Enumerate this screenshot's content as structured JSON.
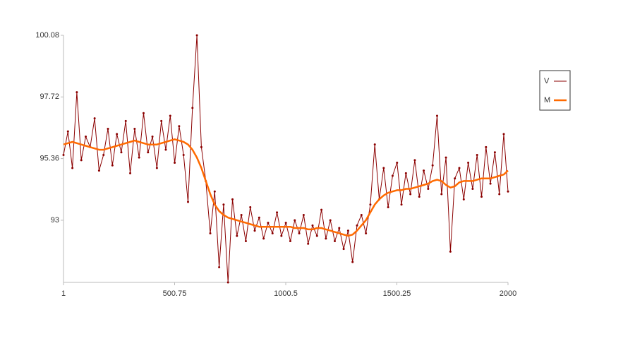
{
  "chart_data": {
    "type": "line",
    "x": [
      1,
      21,
      41,
      61,
      81,
      101,
      121,
      141,
      161,
      181,
      201,
      221,
      241,
      261,
      281,
      301,
      321,
      341,
      361,
      381,
      401,
      421,
      441,
      461,
      481,
      501,
      521,
      541,
      561,
      581,
      601,
      621,
      641,
      661,
      681,
      701,
      721,
      741,
      761,
      781,
      801,
      821,
      841,
      861,
      881,
      901,
      921,
      941,
      961,
      981,
      1001,
      1021,
      1041,
      1061,
      1081,
      1101,
      1121,
      1141,
      1161,
      1181,
      1201,
      1221,
      1241,
      1261,
      1281,
      1301,
      1321,
      1341,
      1361,
      1381,
      1401,
      1421,
      1441,
      1461,
      1481,
      1501,
      1521,
      1541,
      1561,
      1581,
      1601,
      1621,
      1641,
      1661,
      1681,
      1701,
      1721,
      1741,
      1761,
      1781,
      1801,
      1821,
      1841,
      1861,
      1881,
      1901,
      1921,
      1941,
      1961,
      1981,
      2000
    ],
    "series": [
      {
        "name": "V",
        "color": "#8b0000",
        "markers": true,
        "values": [
          95.5,
          96.4,
          95.0,
          97.9,
          95.3,
          96.2,
          95.8,
          96.9,
          94.9,
          95.5,
          96.5,
          95.1,
          96.3,
          95.6,
          96.8,
          94.8,
          96.5,
          95.4,
          97.1,
          95.6,
          96.2,
          95.0,
          96.8,
          95.7,
          97.0,
          95.2,
          96.6,
          95.5,
          93.7,
          97.3,
          100.08,
          95.8,
          94.5,
          92.5,
          94.1,
          91.2,
          93.6,
          90.62,
          93.8,
          92.4,
          93.2,
          92.2,
          93.5,
          92.6,
          93.1,
          92.3,
          92.9,
          92.5,
          93.3,
          92.4,
          92.9,
          92.2,
          93.0,
          92.5,
          93.2,
          92.1,
          92.8,
          92.4,
          93.4,
          92.3,
          93.0,
          92.2,
          92.7,
          91.9,
          92.6,
          91.4,
          92.8,
          93.2,
          92.5,
          93.6,
          95.9,
          93.8,
          95.0,
          93.5,
          94.7,
          95.2,
          93.6,
          94.8,
          94.0,
          95.3,
          93.9,
          94.9,
          94.2,
          95.1,
          97.0,
          94.0,
          95.4,
          91.8,
          94.6,
          95.0,
          93.8,
          95.2,
          94.2,
          95.5,
          93.9,
          95.8,
          94.4,
          95.6,
          94.0,
          96.3,
          94.1
        ]
      },
      {
        "name": "M",
        "color": "#ff6a00",
        "markers": false,
        "values": [
          95.9,
          95.95,
          96.0,
          95.95,
          95.9,
          95.85,
          95.8,
          95.75,
          95.7,
          95.7,
          95.75,
          95.8,
          95.85,
          95.9,
          95.95,
          96.0,
          96.05,
          96.0,
          95.95,
          95.9,
          95.9,
          95.9,
          95.95,
          96.0,
          96.05,
          96.1,
          96.05,
          96.0,
          95.9,
          95.7,
          95.4,
          95.0,
          94.5,
          94.0,
          93.6,
          93.35,
          93.2,
          93.1,
          93.05,
          93.0,
          92.95,
          92.9,
          92.85,
          92.8,
          92.75,
          92.75,
          92.75,
          92.75,
          92.75,
          92.75,
          92.75,
          92.75,
          92.7,
          92.7,
          92.7,
          92.65,
          92.65,
          92.7,
          92.7,
          92.65,
          92.6,
          92.55,
          92.5,
          92.45,
          92.4,
          92.45,
          92.6,
          92.8,
          93.0,
          93.3,
          93.6,
          93.8,
          93.95,
          94.05,
          94.1,
          94.15,
          94.15,
          94.2,
          94.2,
          94.25,
          94.3,
          94.35,
          94.4,
          94.5,
          94.55,
          94.5,
          94.35,
          94.25,
          94.3,
          94.45,
          94.5,
          94.5,
          94.5,
          94.55,
          94.6,
          94.6,
          94.6,
          94.65,
          94.7,
          94.75,
          94.9
        ]
      }
    ],
    "xlim": [
      1,
      2000
    ],
    "xticks": [
      1,
      500.75,
      1000.5,
      1500.25,
      2000
    ],
    "ylim": [
      90.62,
      100.08
    ],
    "yticks": [
      93,
      95.36,
      97.72,
      100.08
    ],
    "grid": false,
    "legend": "right"
  }
}
